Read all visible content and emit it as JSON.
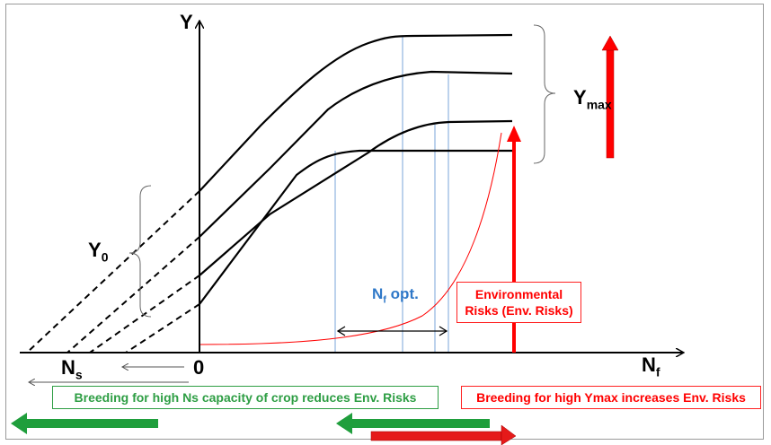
{
  "axes": {
    "y_label": "Y",
    "x_label_main": "N",
    "x_label_sub": "f",
    "origin_label": "0",
    "ns_label_main": "N",
    "ns_label_sub": "s"
  },
  "labels": {
    "ymax_main": "Y",
    "ymax_sub": "max",
    "y0_main": "Y",
    "y0_sub": "0",
    "nfopt_main": "N",
    "nfopt_sub": "f",
    "nfopt_rest": " opt."
  },
  "boxes": {
    "environmental_line1": "Environmental",
    "environmental_line2": "Risks (Env. Risks)",
    "breeding_ns": "Breeding for high Ns capacity of crop reduces Env. Risks",
    "breeding_ymax": "Breeding for high Ymax increases Env. Risks"
  },
  "colors": {
    "curve": "#000000",
    "risk": "#ff0000",
    "benefit": "#1f9e3c",
    "optimum": "#7aa6d8",
    "axis": "#000000"
  }
}
